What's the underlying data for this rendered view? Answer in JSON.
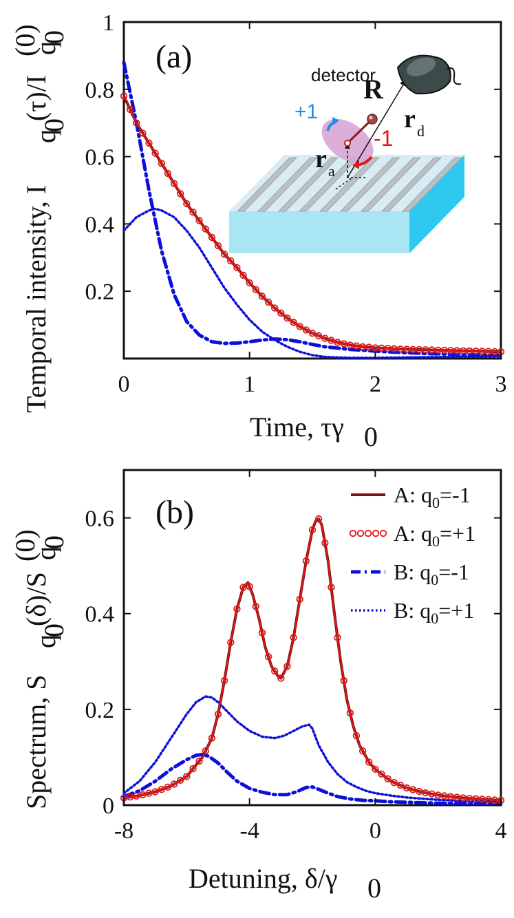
{
  "colors": {
    "dark_red": "#7a1010",
    "red": "#e01818",
    "blue": "#0a10d8",
    "substrate_top": "#d9ecf3",
    "substrate_front": "#a8e6f4",
    "substrate_side": "#2ec8f0",
    "ridge": "#b8c2c6",
    "atom_cloud": "#d8a6d6",
    "plus_arrow": "#1e8cf0",
    "minus_arrow": "#e01818"
  },
  "chart_data": [
    {
      "type": "line",
      "panel_label": "(a)",
      "xlabel": "Time, τγ",
      "xlabel_sub": "0",
      "ylabel": "Temporal intensity, I",
      "ylabel_sub": "q",
      "ylabel_subsub": "0",
      "ylabel_arg": "(τ)/I",
      "ylabel_sup": "(0)",
      "xlim": [
        0,
        3
      ],
      "ylim": [
        0,
        1
      ],
      "xticks": [
        "0",
        "1",
        "2",
        "3"
      ],
      "xtick_values": [
        0,
        1,
        2,
        3
      ],
      "yticks": [
        "0.2",
        "0.4",
        "0.6",
        "0.8",
        "1"
      ],
      "ytick_values": [
        0.2,
        0.4,
        0.6,
        0.8,
        1.0
      ],
      "series": [
        {
          "name": "A: q0=-1",
          "style": "solid",
          "color": "#7a1010",
          "x": [
            0.0,
            0.1,
            0.2,
            0.3,
            0.4,
            0.5,
            0.6,
            0.7,
            0.8,
            0.9,
            1.0,
            1.1,
            1.2,
            1.3,
            1.4,
            1.5,
            1.6,
            1.7,
            1.8,
            1.9,
            2.0,
            2.2,
            2.4,
            2.6,
            2.8,
            3.0
          ],
          "y": [
            0.78,
            0.7,
            0.64,
            0.58,
            0.52,
            0.46,
            0.41,
            0.36,
            0.31,
            0.27,
            0.225,
            0.185,
            0.15,
            0.12,
            0.095,
            0.075,
            0.06,
            0.048,
            0.04,
            0.035,
            0.032,
            0.028,
            0.026,
            0.024,
            0.022,
            0.02
          ]
        },
        {
          "name": "A: q0=+1",
          "style": "circles",
          "color": "#e01818",
          "x": [
            0.0,
            0.1,
            0.2,
            0.3,
            0.4,
            0.5,
            0.6,
            0.7,
            0.8,
            0.9,
            1.0,
            1.1,
            1.2,
            1.3,
            1.4,
            1.5,
            1.6,
            1.7,
            1.8,
            1.9,
            2.0,
            2.2,
            2.4,
            2.6,
            2.8,
            3.0
          ],
          "y": [
            0.78,
            0.7,
            0.64,
            0.58,
            0.52,
            0.46,
            0.41,
            0.36,
            0.31,
            0.27,
            0.225,
            0.185,
            0.15,
            0.12,
            0.095,
            0.075,
            0.06,
            0.048,
            0.04,
            0.035,
            0.032,
            0.028,
            0.026,
            0.024,
            0.022,
            0.02
          ]
        },
        {
          "name": "B: q0=-1",
          "style": "dashdot",
          "color": "#0a10d8",
          "x": [
            0.0,
            0.1,
            0.2,
            0.3,
            0.4,
            0.5,
            0.6,
            0.7,
            0.8,
            0.9,
            1.0,
            1.1,
            1.2,
            1.3,
            1.4,
            1.5,
            1.6,
            1.8,
            2.0,
            2.2,
            2.4,
            2.6,
            2.8,
            3.0
          ],
          "y": [
            0.88,
            0.7,
            0.5,
            0.32,
            0.19,
            0.11,
            0.07,
            0.05,
            0.045,
            0.046,
            0.05,
            0.055,
            0.058,
            0.056,
            0.05,
            0.042,
            0.035,
            0.027,
            0.022,
            0.018,
            0.015,
            0.013,
            0.011,
            0.01
          ]
        },
        {
          "name": "B: q0=+1",
          "style": "dotted",
          "color": "#0a10d8",
          "x": [
            0.0,
            0.1,
            0.2,
            0.25,
            0.3,
            0.4,
            0.5,
            0.6,
            0.7,
            0.8,
            0.9,
            1.0,
            1.1,
            1.2,
            1.3,
            1.4,
            1.5,
            1.6,
            1.7,
            1.8,
            2.0,
            2.2,
            2.4,
            2.6,
            2.8,
            3.0
          ],
          "y": [
            0.38,
            0.42,
            0.44,
            0.445,
            0.44,
            0.42,
            0.38,
            0.33,
            0.27,
            0.21,
            0.16,
            0.115,
            0.08,
            0.055,
            0.035,
            0.02,
            0.01,
            0.005,
            0.003,
            0.002,
            0.002,
            0.003,
            0.004,
            0.005,
            0.006,
            0.007
          ]
        }
      ]
    },
    {
      "type": "line",
      "panel_label": "(b)",
      "xlabel": "Detuning, δ/γ",
      "xlabel_sub": "0",
      "ylabel": "Spectrum, S",
      "ylabel_sub": "q",
      "ylabel_subsub": "0",
      "ylabel_arg": "(δ)/S",
      "ylabel_sup": "(0)",
      "xlim": [
        -8,
        4
      ],
      "ylim": [
        0,
        0.7
      ],
      "xticks": [
        "-8",
        "-4",
        "0",
        "4"
      ],
      "xtick_values": [
        -8,
        -4,
        0,
        4
      ],
      "yticks": [
        "0",
        "0.2",
        "0.4",
        "0.6"
      ],
      "ytick_values": [
        0,
        0.2,
        0.4,
        0.6
      ],
      "legend": {
        "position": "top-right",
        "entries": [
          {
            "label": "A: q",
            "sub": "0",
            "rest": "=-1",
            "style": "solid",
            "color": "#7a1010"
          },
          {
            "label": "A: q",
            "sub": "0",
            "rest": "=+1",
            "style": "circles",
            "color": "#e01818"
          },
          {
            "label": "B: q",
            "sub": "0",
            "rest": "=-1",
            "style": "dashdot",
            "color": "#0a10d8"
          },
          {
            "label": "B: q",
            "sub": "0",
            "rest": "=+1",
            "style": "dotted",
            "color": "#0a10d8"
          }
        ]
      },
      "series": [
        {
          "name": "A: q0=-1",
          "style": "solid",
          "color": "#7a1010",
          "x": [
            -8,
            -7.5,
            -7,
            -6.5,
            -6,
            -5.5,
            -5.2,
            -5,
            -4.8,
            -4.6,
            -4.4,
            -4.2,
            -4.05,
            -3.9,
            -3.7,
            -3.5,
            -3.3,
            -3.1,
            -3.0,
            -2.8,
            -2.6,
            -2.4,
            -2.2,
            -2.0,
            -1.9,
            -1.8,
            -1.7,
            -1.5,
            -1.3,
            -1.1,
            -0.9,
            -0.7,
            -0.5,
            -0.2,
            0,
            0.5,
            1,
            1.5,
            2,
            2.5,
            3,
            3.5,
            4
          ],
          "y": [
            0.015,
            0.02,
            0.028,
            0.04,
            0.06,
            0.1,
            0.14,
            0.19,
            0.26,
            0.34,
            0.41,
            0.455,
            0.465,
            0.44,
            0.39,
            0.33,
            0.29,
            0.27,
            0.265,
            0.29,
            0.35,
            0.43,
            0.51,
            0.575,
            0.593,
            0.598,
            0.585,
            0.51,
            0.4,
            0.3,
            0.22,
            0.165,
            0.125,
            0.09,
            0.075,
            0.05,
            0.036,
            0.027,
            0.021,
            0.017,
            0.014,
            0.012,
            0.01
          ]
        },
        {
          "name": "A: q0=+1",
          "style": "circles",
          "color": "#e01818",
          "x": [
            -8,
            -7.5,
            -7,
            -6.5,
            -6,
            -5.5,
            -5.2,
            -5,
            -4.8,
            -4.6,
            -4.4,
            -4.2,
            -4.05,
            -3.9,
            -3.7,
            -3.5,
            -3.3,
            -3.1,
            -3.0,
            -2.8,
            -2.6,
            -2.4,
            -2.2,
            -2.0,
            -1.9,
            -1.8,
            -1.7,
            -1.5,
            -1.3,
            -1.1,
            -0.9,
            -0.7,
            -0.5,
            -0.2,
            0,
            0.5,
            1,
            1.5,
            2,
            2.5,
            3,
            3.5,
            4
          ],
          "y": [
            0.015,
            0.02,
            0.028,
            0.04,
            0.06,
            0.1,
            0.14,
            0.19,
            0.26,
            0.34,
            0.41,
            0.455,
            0.465,
            0.44,
            0.39,
            0.33,
            0.29,
            0.27,
            0.265,
            0.29,
            0.35,
            0.43,
            0.51,
            0.575,
            0.593,
            0.598,
            0.585,
            0.51,
            0.4,
            0.3,
            0.22,
            0.165,
            0.125,
            0.09,
            0.075,
            0.05,
            0.036,
            0.027,
            0.021,
            0.017,
            0.014,
            0.012,
            0.01
          ]
        },
        {
          "name": "B: q0=-1",
          "style": "dashdot",
          "color": "#0a10d8",
          "x": [
            -8,
            -7.5,
            -7,
            -6.5,
            -6,
            -5.7,
            -5.5,
            -5.3,
            -5.0,
            -4.7,
            -4.4,
            -4.0,
            -3.6,
            -3.2,
            -2.8,
            -2.5,
            -2.2,
            -2.0,
            -1.8,
            -1.5,
            -1.2,
            -0.8,
            -0.4,
            0,
            0.5,
            1,
            2,
            3,
            4
          ],
          "y": [
            0.018,
            0.03,
            0.05,
            0.075,
            0.095,
            0.104,
            0.106,
            0.102,
            0.088,
            0.068,
            0.05,
            0.035,
            0.027,
            0.022,
            0.022,
            0.028,
            0.037,
            0.038,
            0.033,
            0.025,
            0.018,
            0.013,
            0.01,
            0.009,
            0.007,
            0.006,
            0.004,
            0.003,
            0.003
          ]
        },
        {
          "name": "B: q0=+1",
          "style": "dotted",
          "color": "#0a10d8",
          "x": [
            -8,
            -7.5,
            -7,
            -6.5,
            -6,
            -5.7,
            -5.4,
            -5.2,
            -5.0,
            -4.7,
            -4.4,
            -4.0,
            -3.6,
            -3.2,
            -2.9,
            -2.6,
            -2.3,
            -2.1,
            -2.0,
            -1.8,
            -1.5,
            -1.2,
            -0.9,
            -0.6,
            -0.3,
            0,
            0.5,
            1,
            2,
            3,
            4
          ],
          "y": [
            0.025,
            0.05,
            0.09,
            0.14,
            0.19,
            0.215,
            0.227,
            0.225,
            0.215,
            0.195,
            0.175,
            0.155,
            0.143,
            0.14,
            0.145,
            0.155,
            0.165,
            0.168,
            0.16,
            0.125,
            0.09,
            0.065,
            0.048,
            0.038,
            0.03,
            0.025,
            0.02,
            0.016,
            0.011,
            0.008,
            0.006
          ]
        }
      ]
    }
  ],
  "inset": {
    "detector_label": "detector",
    "R_label": "R",
    "rd_label": "r",
    "rd_sub": "d",
    "ra_label": "r",
    "ra_sub": "a",
    "plus_label": "+1",
    "minus_label": "-1"
  }
}
